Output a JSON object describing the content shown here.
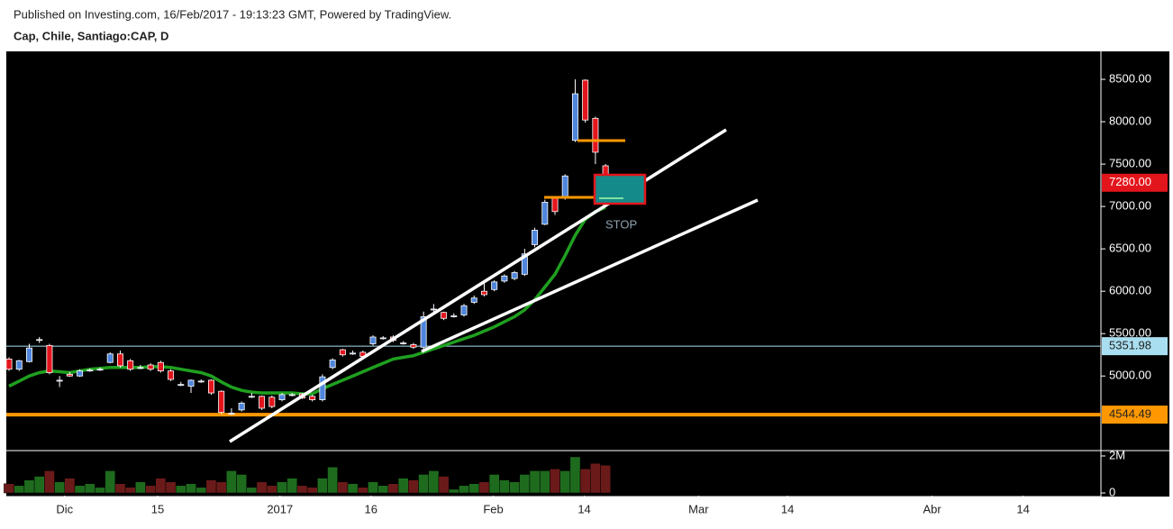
{
  "chart_data": {
    "type": "candlestick",
    "source": "Published on Investing.com, 16/Feb/2017 - 19:13:23 GMT, Powered by TradingView.",
    "title": "Cap, Chile, Santiago:CAP, D",
    "annotation": "STOP",
    "up_color": "#4f86dc",
    "down_color": "#e3151c",
    "vol_up_color": "#1e6b1e",
    "vol_down_color": "#6b1a1a",
    "ma_color": "#1fa01f",
    "open": [
      5200,
      5080,
      5170,
      5430,
      5360,
      4950,
      5020,
      5000,
      5070,
      5080,
      5160,
      5260,
      5180,
      5100,
      5130,
      5160,
      5060,
      4900,
      4880,
      4940,
      4950,
      4820,
      4560,
      4600,
      4760,
      4760,
      4750,
      4720,
      4780,
      4790,
      4760,
      4720,
      5100,
      5310,
      5270,
      5280,
      5380,
      5450,
      5460,
      5390,
      5370,
      5340,
      5790,
      5750,
      5710,
      5720,
      5870,
      6000,
      6020,
      6120,
      6150,
      6200,
      6550,
      6790,
      7100,
      7100,
      7780,
      8490,
      8040,
      7480
    ],
    "high": [
      5220,
      5190,
      5380,
      5460,
      5380,
      5000,
      5050,
      5080,
      5090,
      5100,
      5280,
      5300,
      5200,
      5130,
      5150,
      5180,
      5080,
      4930,
      4960,
      4960,
      4960,
      4830,
      4620,
      4700,
      4800,
      4770,
      4770,
      4800,
      4800,
      4800,
      4780,
      5020,
      5210,
      5320,
      5300,
      5300,
      5480,
      5470,
      5480,
      5410,
      5390,
      5760,
      5850,
      5760,
      5740,
      5850,
      5950,
      6100,
      6130,
      6200,
      6240,
      6500,
      6750,
      7080,
      7120,
      7380,
      8500,
      8500,
      8060,
      7500
    ],
    "low": [
      5060,
      5060,
      5160,
      5390,
      5020,
      4870,
      4990,
      4990,
      5050,
      5060,
      5150,
      5100,
      5060,
      5080,
      5060,
      5040,
      4940,
      4880,
      4800,
      4920,
      4780,
      4550,
      4540,
      4580,
      4740,
      4600,
      4620,
      4700,
      4760,
      4730,
      4700,
      4700,
      5080,
      5230,
      5250,
      5210,
      5360,
      5430,
      5400,
      5370,
      5320,
      5320,
      5750,
      5660,
      5690,
      5700,
      5850,
      5940,
      6000,
      6100,
      6130,
      6180,
      6520,
      6780,
      6900,
      7080,
      7760,
      7990,
      7500,
      7210
    ],
    "close": [
      5080,
      5180,
      5330,
      5430,
      5040,
      4950,
      5000,
      5060,
      5070,
      5080,
      5260,
      5120,
      5080,
      5100,
      5080,
      5060,
      4960,
      4900,
      4950,
      4940,
      4800,
      4570,
      4560,
      4680,
      4760,
      4620,
      4640,
      4780,
      4780,
      4740,
      4720,
      4990,
      5190,
      5250,
      5270,
      5230,
      5460,
      5450,
      5420,
      5390,
      5340,
      5700,
      5790,
      5680,
      5710,
      5830,
      5920,
      5960,
      6110,
      6180,
      6220,
      6440,
      6720,
      7050,
      6940,
      7360,
      8330,
      8020,
      7640,
      7280
    ],
    "volume": [
      500000,
      400000,
      700000,
      900000,
      1200000,
      600000,
      800000,
      400000,
      500000,
      300000,
      1200000,
      500000,
      300000,
      600000,
      400000,
      800000,
      600000,
      400000,
      500000,
      300000,
      700000,
      600000,
      1200000,
      1000000,
      300000,
      600000,
      400000,
      600000,
      800000,
      400000,
      300000,
      800000,
      1400000,
      600000,
      500000,
      300000,
      600000,
      400000,
      500000,
      800000,
      700000,
      1000000,
      1200000,
      900000,
      200000,
      400000,
      500000,
      600000,
      1000000,
      700000,
      600000,
      1000000,
      1200000,
      1200000,
      1300000,
      1200000,
      1950000,
      1300000,
      1600000,
      1500000
    ],
    "ma": [
      4880,
      4940,
      5000,
      5040,
      5060,
      5050,
      5040,
      5060,
      5080,
      5090,
      5100,
      5100,
      5100,
      5100,
      5110,
      5110,
      5100,
      5080,
      5060,
      5040,
      5000,
      4930,
      4870,
      4830,
      4810,
      4800,
      4800,
      4800,
      4800,
      4790,
      4790,
      4850,
      4900,
      4950,
      5000,
      5050,
      5100,
      5150,
      5200,
      5220,
      5240,
      5280,
      5320,
      5360,
      5400,
      5440,
      5480,
      5530,
      5580,
      5640,
      5700,
      5780,
      5900,
      6050,
      6200,
      6420,
      6660,
      6850,
      6940,
      6990
    ],
    "xlim": [
      -0.27,
      108
    ],
    "xticks": [
      {
        "value": 5.5,
        "label": "Dic"
      },
      {
        "value": 14.7,
        "label": "15"
      },
      {
        "value": 26.8,
        "label": "2017"
      },
      {
        "value": 35.8,
        "label": "16"
      },
      {
        "value": 47.9,
        "label": "Feb"
      },
      {
        "value": 56.9,
        "label": "14"
      },
      {
        "value": 68.2,
        "label": "Mar"
      },
      {
        "value": 77,
        "label": "14"
      },
      {
        "value": 91.3,
        "label": "Abr"
      },
      {
        "value": 100.3,
        "label": "14"
      }
    ],
    "ylim": [
      4120,
      8830
    ],
    "yticks": [
      {
        "value": 5000,
        "label": "5000.00"
      },
      {
        "value": 5500,
        "label": "5500.00"
      },
      {
        "value": 6000,
        "label": "6000.00"
      },
      {
        "value": 6500,
        "label": "6500.00"
      },
      {
        "value": 7000,
        "label": "7000.00"
      },
      {
        "value": 7500,
        "label": "7500.00"
      },
      {
        "value": 8000,
        "label": "8000.00"
      },
      {
        "value": 8500,
        "label": "8500.00"
      }
    ],
    "vol_ylim": [
      -146000,
      2290000
    ],
    "vol_yticks": [
      {
        "value": 0,
        "label": "0"
      },
      {
        "value": 2000000,
        "label": "2M"
      }
    ],
    "price_lines": [
      {
        "value": 7280,
        "label": "7280.00",
        "color": "#e3151c",
        "text_color": "#ffffff",
        "line": false
      },
      {
        "value": 5351.98,
        "label": "5351.98",
        "color": "#a9def0",
        "text_color": "#222222",
        "line": true
      },
      {
        "value": 4544.49,
        "label": "4544.49",
        "color": "#ff9800",
        "text_color": "#222222",
        "line": true
      }
    ]
  }
}
